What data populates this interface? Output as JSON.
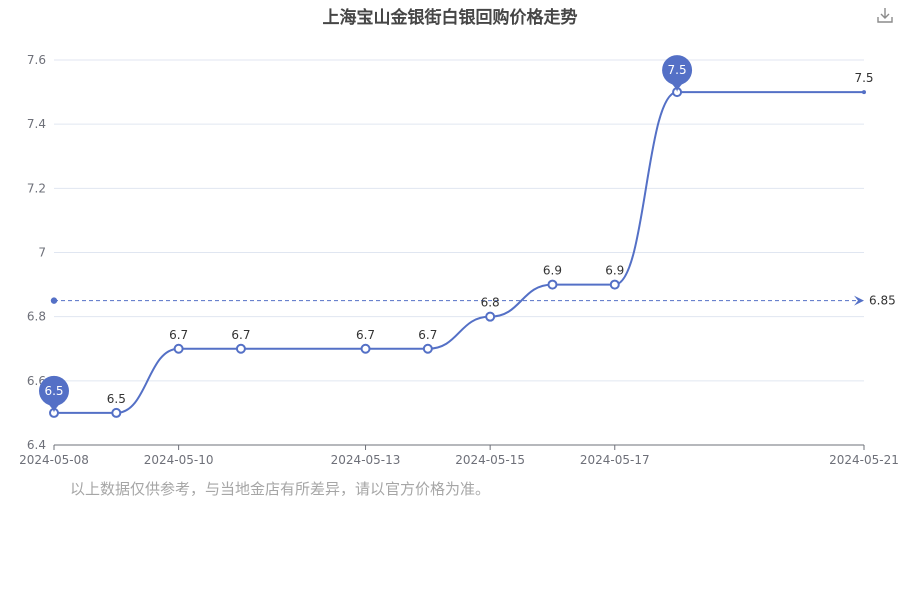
{
  "chart_data": {
    "type": "line",
    "title": "上海宝山金银街白银回购价格走势",
    "x_tick_labels": [
      "2024-05-08",
      "2024-05-10",
      "2024-05-13",
      "2024-05-15",
      "2024-05-17",
      "2024-05-21"
    ],
    "series": [
      {
        "x": [
          "2024-05-08",
          "2024-05-09",
          "2024-05-10",
          "2024-05-11",
          "2024-05-13",
          "2024-05-14",
          "2024-05-15",
          "2024-05-16",
          "2024-05-17",
          "2024-05-18",
          "2024-05-21"
        ],
        "values": [
          6.5,
          6.5,
          6.7,
          6.7,
          6.7,
          6.7,
          6.8,
          6.9,
          6.9,
          7.5,
          7.5
        ],
        "labels": [
          "6.5",
          "6.5",
          "6.7",
          "6.7",
          "6.7",
          "6.7",
          "6.8",
          "6.9",
          "6.9",
          "7.5",
          "7.5"
        ]
      }
    ],
    "y_ticks": [
      "6.4",
      "6.6",
      "6.8",
      "7",
      "7.2",
      "7.4",
      "7.6"
    ],
    "ylim": [
      6.4,
      7.6
    ],
    "average_line": {
      "value": 6.85,
      "label": "6.85"
    },
    "min_marker": {
      "value": 6.5,
      "label": "6.5"
    },
    "max_marker": {
      "value": 7.5,
      "label": "7.5"
    },
    "grid": true,
    "smooth": true,
    "colors": {
      "series": "#5470c6",
      "grid": "#e0e6f1",
      "axis": "#6e7079"
    }
  },
  "toolbar": {
    "download_icon": "download-icon"
  },
  "footer": {
    "note": "以上数据仅供参考，与当地金店有所差异，请以官方价格为准。"
  }
}
